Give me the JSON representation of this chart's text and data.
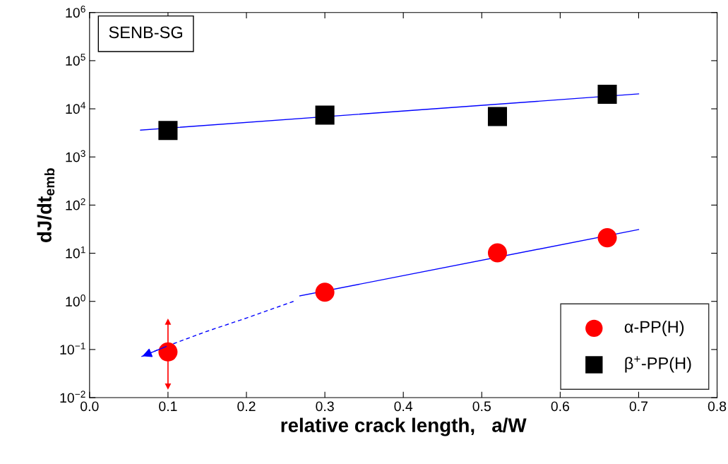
{
  "chart_data": {
    "type": "scatter",
    "xlabel": "relative crack length,   a/W",
    "ylabel": "dJ/dt$_{emb}$",
    "log": "y",
    "xlim": [
      0.0,
      0.8
    ],
    "xticks": [
      {
        "value": 0.0,
        "label": "0.0"
      },
      0.1,
      0.2,
      0.3,
      0.4,
      0.5,
      0.6,
      0.7,
      0.8
    ],
    "ylim": [
      0.01,
      1000000
    ],
    "yticks": [
      {
        "value": 0.01,
        "label": "10$^{−2}$"
      },
      {
        "value": 0.1,
        "label": "10$^{−1}$"
      },
      {
        "value": 1,
        "label": "10$^{0}$"
      },
      {
        "value": 10,
        "label": "10$^{1}$"
      },
      {
        "value": 100,
        "label": "10$^{2}$"
      },
      {
        "value": 1000,
        "label": "10$^{3}$"
      },
      {
        "value": 10000,
        "label": "10$^{4}$"
      },
      {
        "value": 100000,
        "label": "10$^{5}$"
      },
      {
        "value": 1000000,
        "label": "10$^{6}$"
      }
    ],
    "grid": false,
    "legend": "bottom right",
    "annotations": [
      "SENB-SG"
    ],
    "series": [
      {
        "name": "α-PP(H)",
        "color": "#ff0000",
        "marker": "circle",
        "x": [
          0.1,
          0.3,
          0.52,
          0.66
        ],
        "values": [
          0.089,
          1.55,
          10.2,
          21
        ],
        "errors": [
          [
            0.017,
            0.38
          ],
          null,
          null,
          null
        ]
      },
      {
        "name": "β$^{+}$-PP(H)",
        "color": "#000000",
        "marker": "square",
        "x": [
          0.1,
          0.3,
          0.52,
          0.66
        ],
        "values": [
          3550,
          7400,
          6900,
          20000
        ]
      },
      {
        "type": "line",
        "color": "#0000ff",
        "line_style": "solid",
        "x": [
          0.065,
          0.7
        ],
        "values": [
          3600,
          20400
        ]
      },
      {
        "type": "line",
        "color": "#0000ff",
        "line_style": "solid",
        "x": [
          0.268,
          0.7
        ],
        "values": [
          1.3,
          31
        ]
      },
      {
        "type": "line",
        "color": "#0000ff",
        "line_style": "dashed",
        "x": [
          0.26,
          0.2,
          0.15,
          0.1,
          0.065
        ],
        "values": [
          1.0,
          0.45,
          0.24,
          0.12,
          0.07
        ]
      }
    ]
  }
}
